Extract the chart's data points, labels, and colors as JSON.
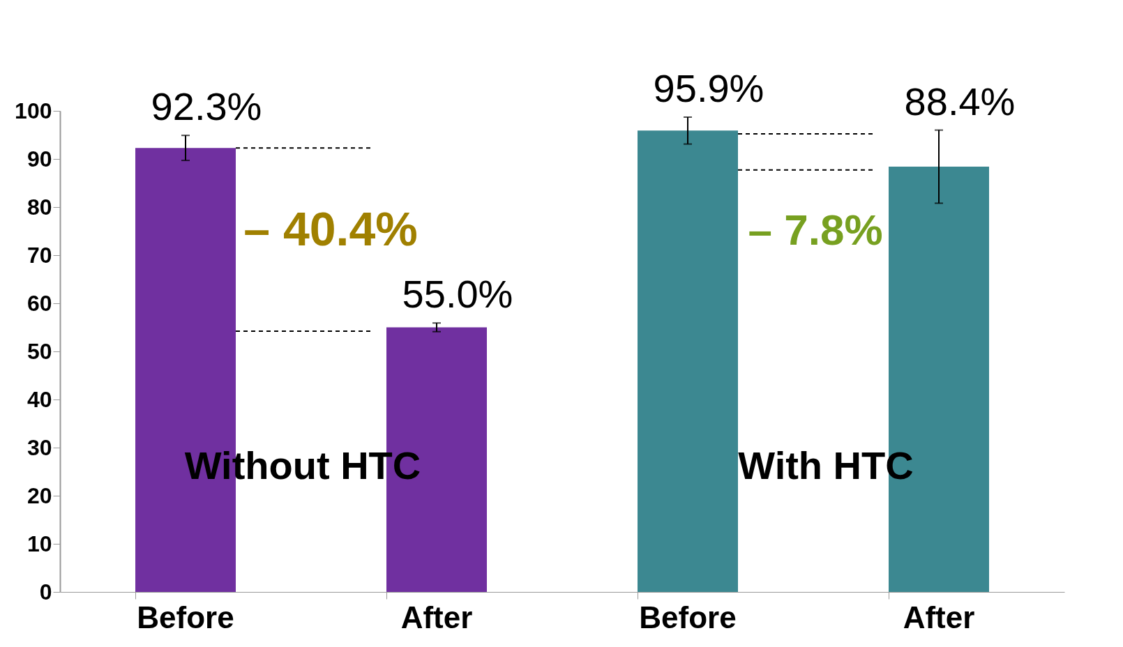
{
  "chart_data": {
    "type": "bar",
    "categories": [
      "Before",
      "After",
      "Before",
      "After"
    ],
    "values": [
      92.3,
      55.0,
      95.9,
      88.4
    ],
    "colors": [
      "#7030a0",
      "#7030a0",
      "#3c8891",
      "#3c8891"
    ],
    "errors": [
      2.6,
      0.9,
      2.8,
      7.6
    ],
    "value_labels": [
      "92.3%",
      "55.0%",
      "95.9%",
      "88.4%"
    ],
    "ylim": [
      0,
      100
    ],
    "yticks": [
      0,
      10,
      20,
      30,
      40,
      50,
      60,
      70,
      80,
      90,
      100
    ],
    "grid": false,
    "ref_lines": [
      {
        "axis": "y",
        "value": 92.3,
        "line_style": "dashed",
        "color": "#000000"
      },
      {
        "axis": "y",
        "value": 54.2,
        "line_style": "dashed",
        "color": "#000000"
      },
      {
        "axis": "y",
        "value": 95.2,
        "line_style": "dashed",
        "color": "#000000"
      },
      {
        "axis": "y",
        "value": 87.7,
        "line_style": "dashed",
        "color": "#000000"
      }
    ],
    "annotations": [
      "– 40.4%",
      "– 7.8%",
      "Without HTC",
      "With HTC"
    ]
  }
}
